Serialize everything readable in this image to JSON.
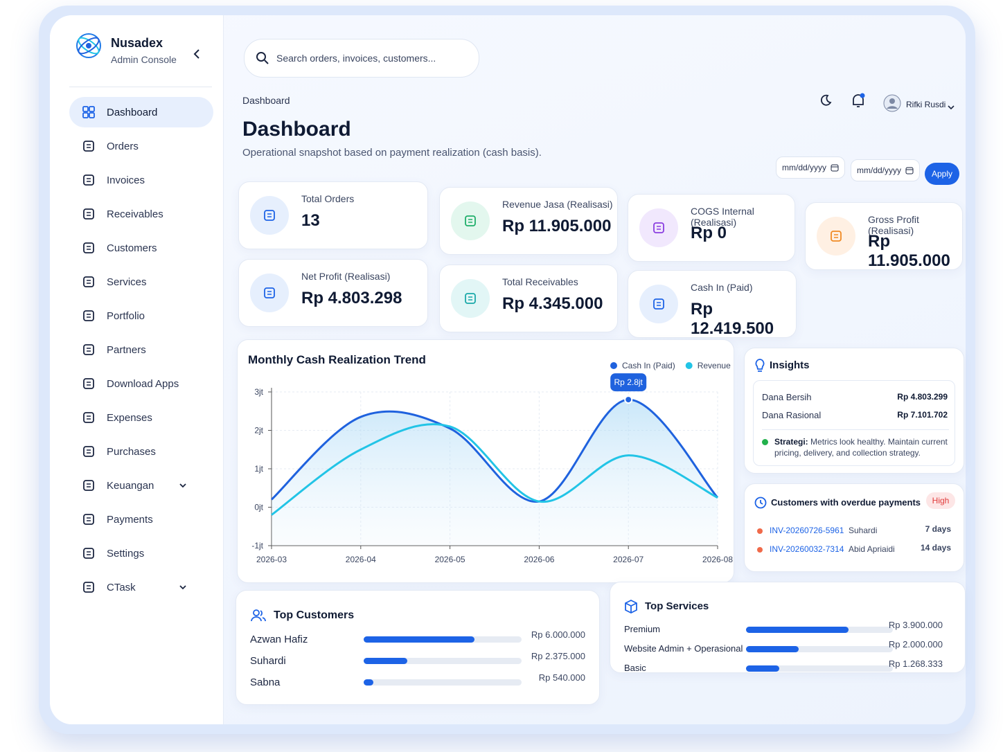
{
  "brand": {
    "name": "Nusadex",
    "subtitle": "Admin Console"
  },
  "nav": [
    "Dashboard",
    "Orders",
    "Invoices",
    "Receivables",
    "Customers",
    "Services",
    "Portfolio",
    "Partners",
    "Download Apps",
    "Expenses",
    "Purchases",
    "Keuangan",
    "Payments",
    "Settings",
    "CTask"
  ],
  "search_placeholder": "Search orders, invoices, customers...",
  "breadcrumb": "Dashboard",
  "page": {
    "title": "Dashboard",
    "subtitle": "Operational snapshot based on payment realization (cash basis)."
  },
  "user": {
    "name": "Rifki Rusdi"
  },
  "filters": {
    "from": "mm/dd/yyyy",
    "to": "mm/dd/yyyy",
    "apply": "Apply"
  },
  "kpis": [
    {
      "label": "Total Orders",
      "value": 13
    },
    {
      "label": "Revenue Jasa (Realisasi)",
      "value": "Rp 11.905.000"
    },
    {
      "label": "COGS Internal (Realisasi)",
      "value": "Rp 0"
    },
    {
      "label": "Gross Profit (Realisasi)",
      "value": "Rp 11.905.000"
    },
    {
      "label": "Net Profit (Realisasi)",
      "value": "Rp 4.803.298"
    },
    {
      "label": "Total Receivables",
      "value": "Rp 4.345.000"
    },
    {
      "label": "Cash In (Paid)",
      "value": "Rp 12.419.500"
    }
  ],
  "chart_data": {
    "type": "line",
    "title": "Monthly Cash Realization Trend",
    "categories": [
      "2026-03",
      "2026-04",
      "2026-05",
      "2026-06",
      "2026-07",
      "2026-08"
    ],
    "series": [
      {
        "name": "Cash In (Paid)",
        "color": "#1f62de",
        "values": [
          0.2,
          2.35,
          2.05,
          0.15,
          2.8,
          0.25
        ],
        "value_labels": [
          null,
          null,
          null,
          null,
          "Rp 2.8jt",
          null
        ]
      },
      {
        "name": "Revenue",
        "color": "#22c4e6",
        "values": [
          -0.2,
          1.5,
          2.1,
          0.15,
          1.35,
          0.25
        ]
      }
    ],
    "ylim": [
      -1,
      3
    ],
    "yticks": [
      {
        "value": -1,
        "label": "-1jt"
      },
      {
        "value": 0,
        "label": "0jt"
      },
      {
        "value": 1,
        "label": "1jt"
      },
      {
        "value": 2,
        "label": "2jt"
      },
      {
        "value": 3,
        "label": "3jt"
      }
    ],
    "grid": true
  },
  "insights": {
    "title": "Insights",
    "rows": [
      {
        "label": "Dana Bersih",
        "value": "Rp 4.803.299"
      },
      {
        "label": "Dana Rasional",
        "value": "Rp 7.101.702"
      }
    ],
    "strategy": {
      "label": "Strategi:",
      "text": "Metrics look healthy. Maintain current pricing, delivery, and collection strategy."
    }
  },
  "overdue": {
    "title": "Customers with overdue payments",
    "badge": "High",
    "rows": [
      {
        "invoice": "INV-20260726-5961",
        "customer": "Suhardi",
        "age": "7 days"
      },
      {
        "invoice": "INV-20260032-7314",
        "customer": "Abid Apriaidi",
        "age": "14 days"
      }
    ]
  },
  "top_customers": {
    "title": "Top Customers",
    "items": [
      {
        "name": "Azwan Hafiz",
        "value": 6000000,
        "label": "Rp 6.000.000"
      },
      {
        "name": "Suhardi",
        "value": 2375000,
        "label": "Rp 2.375.000"
      },
      {
        "name": "Sabna",
        "value": 540000,
        "label": "Rp 540.000"
      }
    ]
  },
  "top_services": {
    "title": "Top Services",
    "items": [
      {
        "name": "Premium",
        "value": 3900000,
        "label": "Rp 3.900.000"
      },
      {
        "name": "Website Admin + Operasional",
        "value": 2000000,
        "label": "Rp 2.000.000"
      },
      {
        "name": "Basic",
        "value": 1268333,
        "label": "Rp 1.268.333"
      }
    ]
  }
}
